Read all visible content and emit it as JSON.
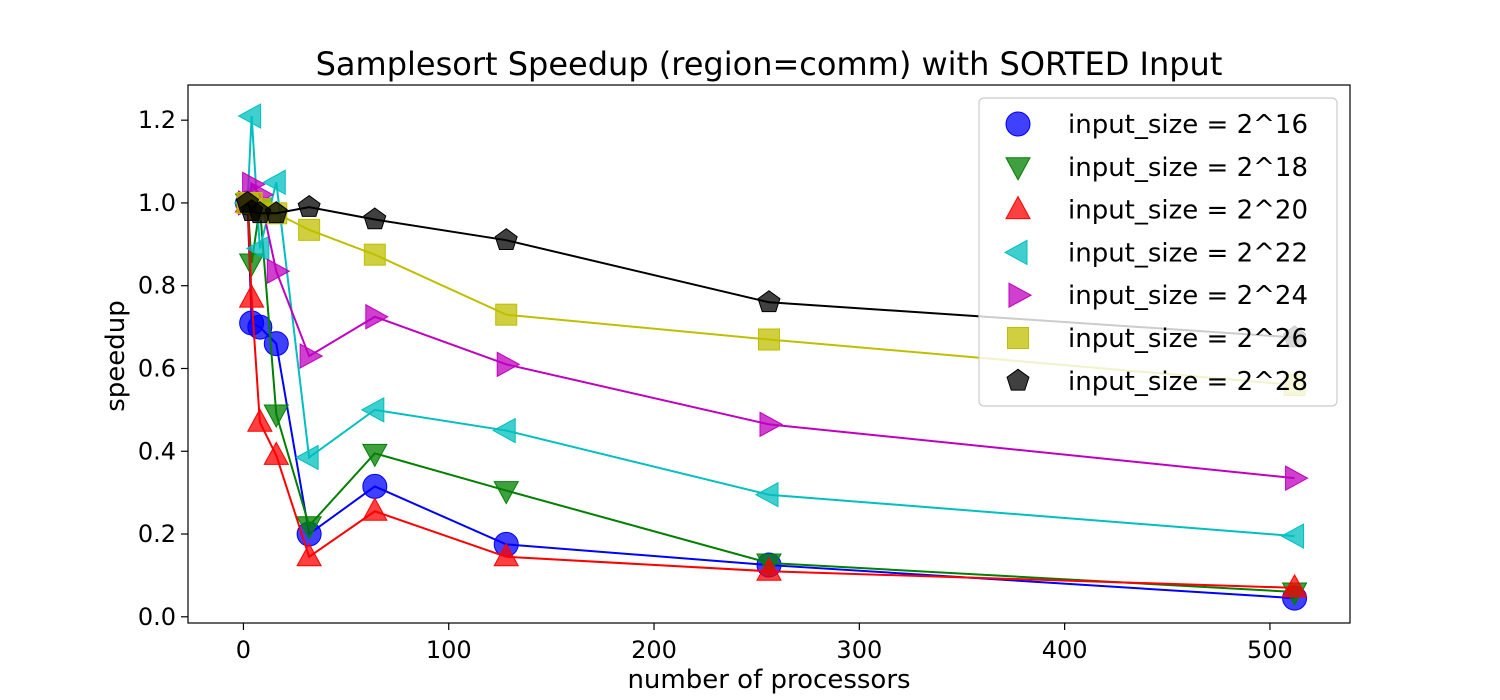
{
  "chart_data": {
    "type": "scatter",
    "title": "Samplesort Speedup (region=comm) with SORTED Input",
    "xlabel": "number of processors",
    "ylabel": "speedup",
    "xlim": [
      -27,
      539
    ],
    "ylim": [
      -0.015,
      1.285
    ],
    "xticks": [
      0,
      100,
      200,
      300,
      400,
      500
    ],
    "yticks": [
      0.0,
      0.2,
      0.4,
      0.6,
      0.8,
      1.0,
      1.2
    ],
    "ytick_labels": [
      "0.0",
      "0.2",
      "0.4",
      "0.6",
      "0.8",
      "1.0",
      "1.2"
    ],
    "grid": false,
    "legend_position": "top-right",
    "x": [
      2,
      4,
      8,
      16,
      32,
      64,
      128,
      256,
      512
    ],
    "series": [
      {
        "name": "input_size = 2^16",
        "color": "#0000ff",
        "marker": "circle",
        "values": [
          1.0,
          0.71,
          0.7,
          0.66,
          0.2,
          0.315,
          0.175,
          0.125,
          0.045
        ]
      },
      {
        "name": "input_size = 2^18",
        "color": "#008000",
        "marker": "triangle-down",
        "values": [
          1.0,
          0.855,
          0.99,
          0.49,
          0.22,
          0.395,
          0.305,
          0.13,
          0.06
        ]
      },
      {
        "name": "input_size = 2^20",
        "color": "#ff0000",
        "marker": "triangle-up",
        "values": [
          1.0,
          0.77,
          0.47,
          0.39,
          0.145,
          0.255,
          0.145,
          0.11,
          0.07
        ]
      },
      {
        "name": "input_size = 2^22",
        "color": "#00bfbf",
        "marker": "triangle-left",
        "values": [
          1.0,
          1.21,
          0.89,
          1.05,
          0.385,
          0.5,
          0.45,
          0.295,
          0.195
        ]
      },
      {
        "name": "input_size = 2^24",
        "color": "#bf00bf",
        "marker": "triangle-right",
        "values": [
          1.0,
          1.045,
          1.02,
          0.835,
          0.63,
          0.725,
          0.61,
          0.465,
          0.335
        ]
      },
      {
        "name": "input_size = 2^26",
        "color": "#bfbf00",
        "marker": "square",
        "values": [
          1.0,
          1.0,
          0.985,
          0.975,
          0.935,
          0.875,
          0.73,
          0.67,
          0.56
        ]
      },
      {
        "name": "input_size = 2^28",
        "color": "#000000",
        "marker": "pentagon",
        "values": [
          1.0,
          0.98,
          0.975,
          0.975,
          0.99,
          0.96,
          0.91,
          0.76,
          0.675
        ]
      }
    ]
  }
}
